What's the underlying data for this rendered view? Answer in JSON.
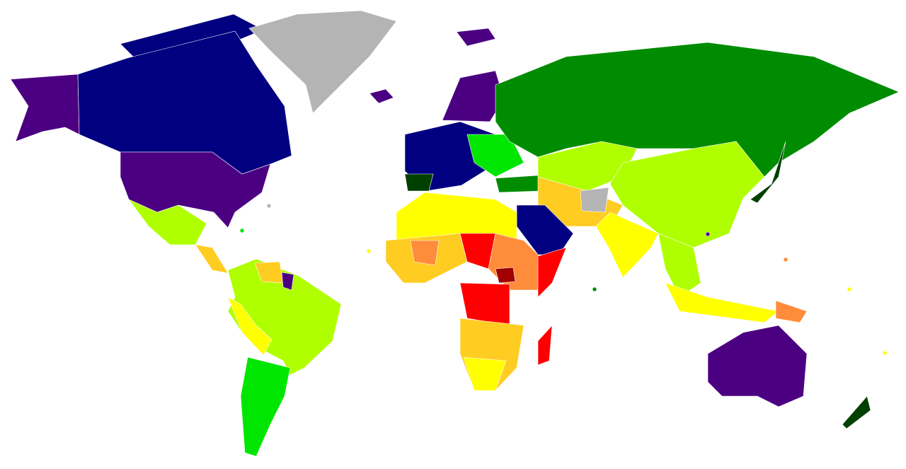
{
  "map": {
    "palette": [
      "#000080",
      "#4b0082",
      "#008c00",
      "#004000",
      "#00e600",
      "#b0ff00",
      "#ffff00",
      "#ffcc22",
      "#ff8c3a",
      "#ff0000",
      "#a00000",
      "#b4b4b4"
    ]
  }
}
